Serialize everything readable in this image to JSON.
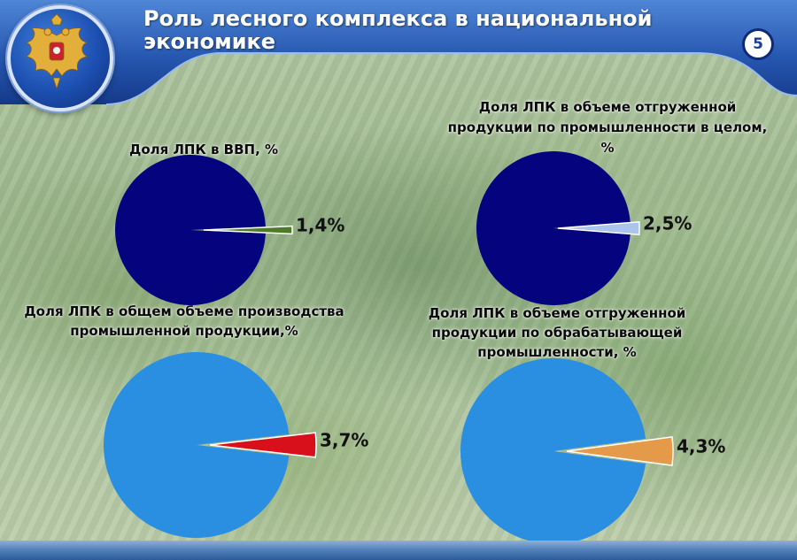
{
  "header": {
    "title": "Роль лесного комплекса в национальной экономике",
    "page_number": "5"
  },
  "colors": {
    "header_dark": "#1d4a9c",
    "header_light": "#4f86d6",
    "pie_dark_blue": "#05037d",
    "pie_light_blue": "#2a8fe0",
    "slice_green": "#4f7a2a",
    "slice_pale_blue": "#aac4ec",
    "slice_red": "#d8101c",
    "slice_orange": "#e49a48"
  },
  "chart_data": [
    {
      "type": "pie",
      "title": "Доля ЛПК в ВВП, %",
      "slices": [
        {
          "value": 98.6,
          "color": "#05037d",
          "label": ""
        },
        {
          "value": 1.4,
          "color": "#4f7a2a",
          "label": "1,4%"
        }
      ]
    },
    {
      "type": "pie",
      "title": "Доля ЛПК в объеме отгруженной продукции  по промышленности в целом, %",
      "slices": [
        {
          "value": 97.5,
          "color": "#05037d",
          "label": ""
        },
        {
          "value": 2.5,
          "color": "#aac4ec",
          "label": "2,5%"
        }
      ]
    },
    {
      "type": "pie",
      "title": "Доля ЛПК в общем объеме производства промышленной продукции,%",
      "slices": [
        {
          "value": 96.3,
          "color": "#2a8fe0",
          "label": ""
        },
        {
          "value": 3.7,
          "color": "#d8101c",
          "label": "3,7%"
        }
      ]
    },
    {
      "type": "pie",
      "title": "Доля ЛПК в объеме отгруженной продукции по обрабатывающей промышленности, %",
      "slices": [
        {
          "value": 95.7,
          "color": "#2a8fe0",
          "label": ""
        },
        {
          "value": 4.3,
          "color": "#e49a48",
          "label": "4,3%"
        }
      ]
    }
  ]
}
